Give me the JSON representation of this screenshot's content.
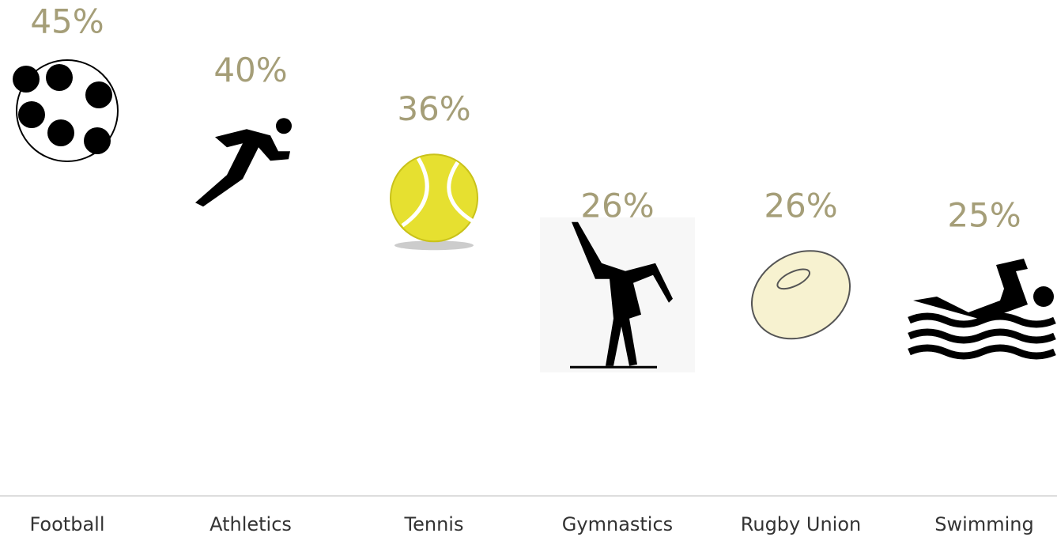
{
  "chart_data": {
    "type": "pictograph",
    "categories": [
      "Football",
      "Athletics",
      "Tennis",
      "Gymnastics",
      "Rugby Union",
      "Swimming"
    ],
    "values": [
      45,
      40,
      36,
      26,
      26,
      25
    ],
    "value_labels": [
      "45%",
      "40%",
      "36%",
      "26%",
      "26%",
      "25%"
    ],
    "color": "#a59e78"
  }
}
